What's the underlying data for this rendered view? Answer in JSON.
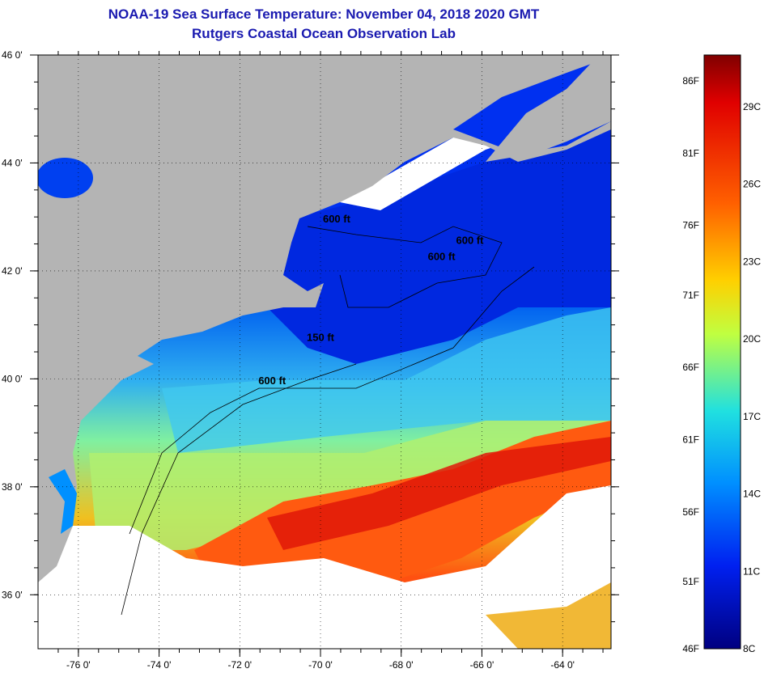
{
  "title": "NOAA-19 Sea Surface Temperature:  November 04, 2018 2020 GMT",
  "subtitle": "Rutgers Coastal Ocean Observation Lab",
  "colors": {
    "land": "#b4b4b4",
    "cloud": "#ffffff",
    "frame": "#000000"
  },
  "map": {
    "lon_range": [
      -77.0,
      -62.8
    ],
    "lat_range": [
      35.0,
      46.0
    ],
    "lon_ticks": [
      {
        "value": -76,
        "label": "-76 0'"
      },
      {
        "value": -74,
        "label": "-74 0'"
      },
      {
        "value": -72,
        "label": "-72 0'"
      },
      {
        "value": -70,
        "label": "-70 0'"
      },
      {
        "value": -68,
        "label": "-68 0'"
      },
      {
        "value": -66,
        "label": "-66 0'"
      },
      {
        "value": -64,
        "label": "-64 0'"
      }
    ],
    "lat_ticks": [
      {
        "value": 46,
        "label": "46 0'"
      },
      {
        "value": 44,
        "label": "44 0'"
      },
      {
        "value": 42,
        "label": "42 0'"
      },
      {
        "value": 40,
        "label": "40 0'"
      },
      {
        "value": 38,
        "label": "38 0'"
      },
      {
        "value": 36,
        "label": "36 0'"
      }
    ],
    "contour_labels": [
      {
        "text": "600 ft",
        "lon": -69.6,
        "lat": 42.9
      },
      {
        "text": "600 ft",
        "lon": -66.3,
        "lat": 42.5
      },
      {
        "text": "600 ft",
        "lon": -67.0,
        "lat": 42.2
      },
      {
        "text": "150 ft",
        "lon": -70.0,
        "lat": 40.7
      },
      {
        "text": "600 ft",
        "lon": -71.2,
        "lat": 39.9
      }
    ]
  },
  "colorbar": {
    "range_c": [
      8,
      31
    ],
    "fahrenheit_labels": [
      {
        "label": "86F",
        "value_c": 30.0
      },
      {
        "label": "81F",
        "value_c": 27.2
      },
      {
        "label": "76F",
        "value_c": 24.4
      },
      {
        "label": "71F",
        "value_c": 21.7
      },
      {
        "label": "66F",
        "value_c": 18.9
      },
      {
        "label": "61F",
        "value_c": 16.1
      },
      {
        "label": "56F",
        "value_c": 13.3
      },
      {
        "label": "51F",
        "value_c": 10.6
      },
      {
        "label": "46F",
        "value_c": 8.0
      }
    ],
    "celsius_labels": [
      {
        "label": "29C",
        "value_c": 29
      },
      {
        "label": "26C",
        "value_c": 26
      },
      {
        "label": "23C",
        "value_c": 23
      },
      {
        "label": "20C",
        "value_c": 20
      },
      {
        "label": "17C",
        "value_c": 17
      },
      {
        "label": "14C",
        "value_c": 14
      },
      {
        "label": "11C",
        "value_c": 11
      },
      {
        "label": "8C",
        "value_c": 8
      }
    ],
    "stops": [
      "#800000",
      "#ff0000",
      "#ff8000",
      "#ffff00",
      "#80ff80",
      "#00ffff",
      "#0080ff",
      "#0000ff",
      "#000080"
    ]
  }
}
